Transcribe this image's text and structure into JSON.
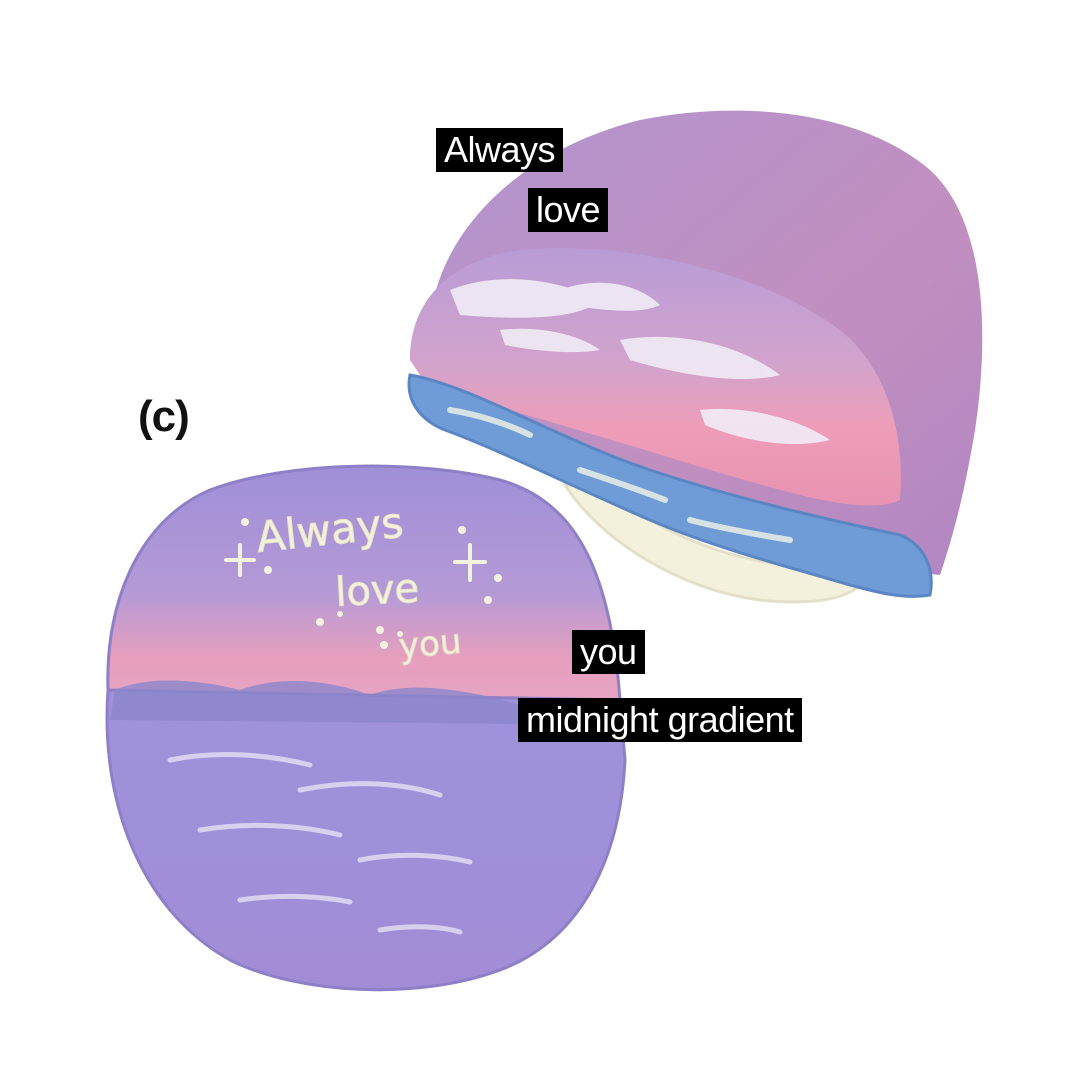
{
  "panel_tag": "(c)",
  "piped_text": {
    "line1": "Always",
    "line2": "love",
    "line3": "you"
  },
  "labels": {
    "top": "Always",
    "second": "love",
    "third": "you",
    "fourth": "midnight gradient"
  },
  "colors": {
    "background": "#ffffff",
    "lavender": "#a994d6",
    "pink": "#e89ab6",
    "blue": "#6f9bd6",
    "cream": "#f4f1df",
    "label_bg": "#000000",
    "label_text": "#ffffff"
  }
}
